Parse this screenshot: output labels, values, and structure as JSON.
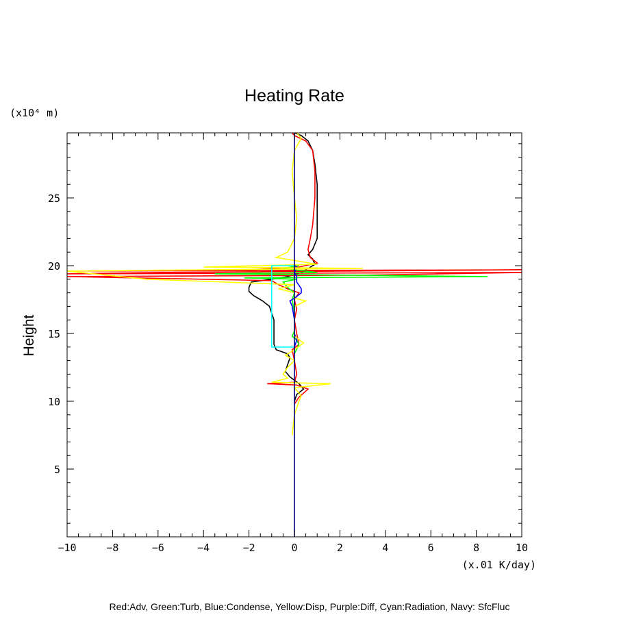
{
  "chart_data": {
    "type": "line",
    "title": "Heating Rate",
    "ylabel": "Height",
    "yunit": "(x10⁴ m)",
    "xunit": "(x.01 K/day)",
    "xlim": [
      -10,
      10
    ],
    "ylim": [
      0,
      29.8
    ],
    "xticks": [
      -10,
      -8,
      -6,
      -4,
      -2,
      0,
      2,
      4,
      6,
      8,
      10
    ],
    "xtick_labels": [
      "−10",
      "−8",
      "−6",
      "−4",
      "−2",
      "0",
      "2",
      "4",
      "6",
      "8",
      "10"
    ],
    "yticks": [
      5,
      10,
      15,
      20,
      25
    ],
    "ytick_labels": [
      "5",
      "10",
      "15",
      "20",
      "25"
    ],
    "legend": "Red:Adv, Green:Turb, Blue:Condense, Yellow:Disp, Purple:Diff, Cyan:Radiation, Navy: SfcFluc",
    "grid": false,
    "series": [
      {
        "color": "#000000",
        "points": [
          [
            0.0,
            10.0
          ],
          [
            0.1,
            10.5
          ],
          [
            0.4,
            10.9
          ],
          [
            0.2,
            11.3
          ],
          [
            -0.2,
            11.8
          ],
          [
            -0.4,
            12.2
          ],
          [
            -0.3,
            12.7
          ],
          [
            -0.2,
            13.2
          ],
          [
            -0.3,
            13.5
          ],
          [
            -0.8,
            13.8
          ],
          [
            -0.9,
            14.2
          ],
          [
            -0.9,
            15.0
          ],
          [
            -0.9,
            16.0
          ],
          [
            -1.0,
            16.5
          ],
          [
            -1.1,
            17.0
          ],
          [
            -1.4,
            17.4
          ],
          [
            -1.8,
            17.8
          ],
          [
            -2.0,
            18.1
          ],
          [
            -2.0,
            18.4
          ],
          [
            -1.9,
            18.8
          ],
          [
            -1.0,
            19.0
          ],
          [
            -0.3,
            19.2
          ],
          [
            0.3,
            19.5
          ],
          [
            0.9,
            20.1
          ],
          [
            0.8,
            20.5
          ],
          [
            0.6,
            20.8
          ],
          [
            0.8,
            21.2
          ],
          [
            1.0,
            22.0
          ],
          [
            1.0,
            24.0
          ],
          [
            1.0,
            26.0
          ],
          [
            0.9,
            27.5
          ],
          [
            0.8,
            28.5
          ],
          [
            0.6,
            29.2
          ],
          [
            0.3,
            29.6
          ],
          [
            0.0,
            29.8
          ]
        ]
      },
      {
        "color": "#ff0000",
        "points": [
          [
            0.0,
            9.8
          ],
          [
            0.2,
            10.3
          ],
          [
            0.6,
            10.9
          ],
          [
            0.1,
            11.2
          ],
          [
            -1.2,
            11.3
          ],
          [
            0.0,
            11.4
          ],
          [
            0.1,
            12.0
          ],
          [
            0.0,
            13.0
          ],
          [
            -0.1,
            13.8
          ],
          [
            0.2,
            14.2
          ],
          [
            0.1,
            15.0
          ],
          [
            0.0,
            16.0
          ],
          [
            0.1,
            16.8
          ],
          [
            0.0,
            17.5
          ],
          [
            0.2,
            18.0
          ],
          [
            -0.3,
            18.3
          ],
          [
            -0.7,
            18.6
          ],
          [
            -1.0,
            18.9
          ],
          [
            -10.0,
            19.2
          ],
          [
            3.0,
            19.3
          ],
          [
            10.0,
            19.5
          ],
          [
            -10.0,
            19.4
          ],
          [
            -6.0,
            19.5
          ],
          [
            10.0,
            19.7
          ],
          [
            -10.0,
            19.6
          ],
          [
            -2.0,
            19.7
          ],
          [
            0.2,
            19.9
          ],
          [
            1.0,
            20.2
          ],
          [
            0.7,
            20.6
          ],
          [
            0.6,
            21.2
          ],
          [
            0.7,
            22.0
          ],
          [
            0.8,
            23.0
          ],
          [
            0.9,
            25.0
          ],
          [
            0.9,
            27.0
          ],
          [
            0.8,
            28.5
          ],
          [
            0.5,
            29.2
          ],
          [
            0.0,
            29.6
          ],
          [
            -0.1,
            29.8
          ]
        ]
      },
      {
        "color": "#00ff00",
        "points": [
          [
            0.0,
            13.5
          ],
          [
            0.2,
            14.2
          ],
          [
            0.1,
            14.5
          ],
          [
            -0.1,
            14.8
          ],
          [
            0.0,
            15.2
          ],
          [
            0.0,
            16.5
          ],
          [
            -0.1,
            17.5
          ],
          [
            0.0,
            18.0
          ],
          [
            -0.3,
            18.4
          ],
          [
            -0.5,
            18.8
          ],
          [
            0.1,
            19.0
          ],
          [
            -2.2,
            19.1
          ],
          [
            8.5,
            19.2
          ],
          [
            -3.5,
            19.4
          ],
          [
            1.0,
            19.5
          ],
          [
            -0.5,
            19.8
          ],
          [
            0.2,
            20.0
          ]
        ]
      },
      {
        "color": "#0000ff",
        "points": [
          [
            0.0,
            14.0
          ],
          [
            0.1,
            14.5
          ],
          [
            0.0,
            15.0
          ],
          [
            0.0,
            16.0
          ],
          [
            -0.1,
            17.0
          ],
          [
            -0.2,
            17.4
          ],
          [
            0.0,
            17.6
          ],
          [
            0.3,
            18.0
          ],
          [
            0.3,
            18.3
          ],
          [
            0.1,
            18.8
          ],
          [
            0.1,
            19.2
          ],
          [
            0.0,
            19.5
          ],
          [
            0.1,
            19.9
          ],
          [
            0.0,
            20.1
          ]
        ]
      },
      {
        "color": "#ffff00",
        "points": [
          [
            -0.1,
            7.5
          ],
          [
            0.0,
            9.0
          ],
          [
            0.2,
            10.0
          ],
          [
            0.3,
            10.4
          ],
          [
            0.0,
            11.0
          ],
          [
            1.6,
            11.3
          ],
          [
            -1.0,
            11.4
          ],
          [
            -0.3,
            11.7
          ],
          [
            -0.5,
            12.0
          ],
          [
            -0.3,
            12.5
          ],
          [
            0.0,
            13.0
          ],
          [
            -0.4,
            13.4
          ],
          [
            0.0,
            13.8
          ],
          [
            0.4,
            14.3
          ],
          [
            0.0,
            14.8
          ],
          [
            0.0,
            16.0
          ],
          [
            0.0,
            17.0
          ],
          [
            0.5,
            17.4
          ],
          [
            0.0,
            17.6
          ],
          [
            0.0,
            18.0
          ],
          [
            -0.7,
            18.3
          ],
          [
            0.0,
            18.6
          ],
          [
            -6.5,
            19.0
          ],
          [
            -10.0,
            19.6
          ],
          [
            3.0,
            19.8
          ],
          [
            -4.0,
            19.9
          ],
          [
            1.0,
            20.1
          ],
          [
            -0.8,
            20.6
          ],
          [
            -0.3,
            21.0
          ],
          [
            0.0,
            22.0
          ],
          [
            0.1,
            23.5
          ],
          [
            0.0,
            25.0
          ],
          [
            -0.1,
            27.0
          ],
          [
            0.0,
            28.5
          ],
          [
            0.3,
            29.4
          ],
          [
            0.1,
            29.8
          ]
        ]
      },
      {
        "color": "#00ffff",
        "points": [
          [
            0.0,
            14.0
          ],
          [
            -1.0,
            14.0
          ],
          [
            -1.0,
            20.0
          ],
          [
            0.0,
            20.0
          ]
        ]
      },
      {
        "color": "#000080",
        "points": [
          [
            0.0,
            0.0
          ],
          [
            0.0,
            29.8
          ]
        ]
      }
    ]
  }
}
